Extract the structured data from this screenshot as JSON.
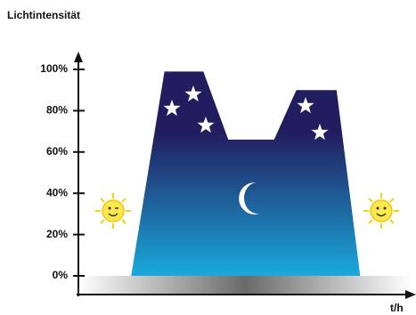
{
  "chart_data": {
    "type": "area",
    "title": "Lichtintensität",
    "xlabel": "t/h",
    "x": [
      3.8,
      6.2,
      9.0,
      10.8,
      14.1,
      15.7,
      18.6,
      20.3
    ],
    "values": [
      0,
      99,
      99,
      66,
      66,
      90,
      90,
      0
    ],
    "xlim": [
      0,
      24
    ],
    "ylim": [
      0,
      100
    ],
    "yticks": [
      {
        "value": 0,
        "label": "0%"
      },
      {
        "value": 20,
        "label": "20%"
      },
      {
        "value": 40,
        "label": "40%"
      },
      {
        "value": 60,
        "label": "60%"
      },
      {
        "value": 80,
        "label": "80%"
      },
      {
        "value": 100,
        "label": "100%"
      }
    ],
    "colors": [
      "#221d5e",
      "#1aa9db"
    ]
  }
}
